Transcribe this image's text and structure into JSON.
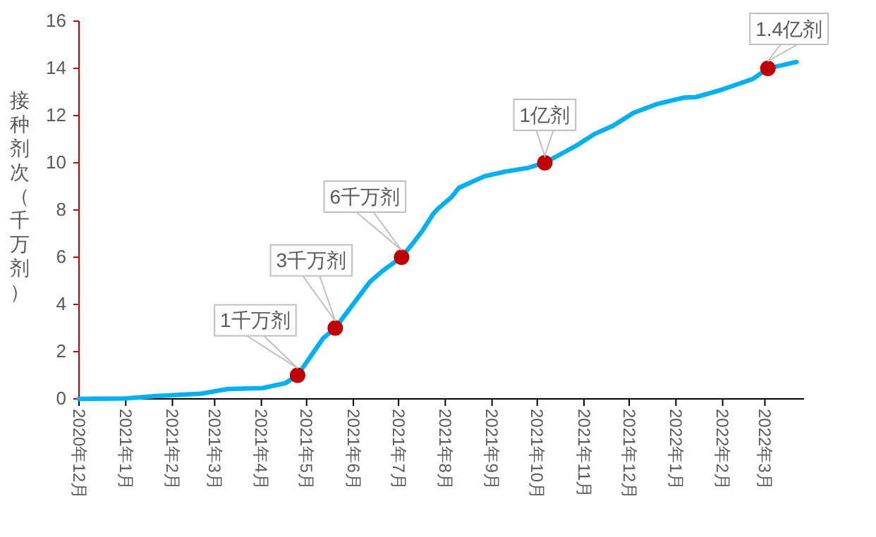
{
  "chart_data": {
    "type": "line",
    "ylabel": "接种剂次（千万剂）",
    "xlim": [
      "2020-12-01",
      "2022-03-27"
    ],
    "xticks": [
      {
        "value": "2020-12",
        "label": "2020年12月"
      },
      {
        "value": "2021-01",
        "label": "2021年1月"
      },
      {
        "value": "2021-02",
        "label": "2021年2月"
      },
      {
        "value": "2021-03",
        "label": "2021年3月"
      },
      {
        "value": "2021-04",
        "label": "2021年4月"
      },
      {
        "value": "2021-05",
        "label": "2021年5月"
      },
      {
        "value": "2021-06",
        "label": "2021年6月"
      },
      {
        "value": "2021-07",
        "label": "2021年7月"
      },
      {
        "value": "2021-08",
        "label": "2021年8月"
      },
      {
        "value": "2021-09",
        "label": "2021年9月"
      },
      {
        "value": "2021-10",
        "label": "2021年10月"
      },
      {
        "value": "2021-11",
        "label": "2021年11月"
      },
      {
        "value": "2021-12",
        "label": "2021年12月"
      },
      {
        "value": "2022-01",
        "label": "2022年1月"
      },
      {
        "value": "2022-02",
        "label": "2022年2月"
      },
      {
        "value": "2022-03",
        "label": "2022年3月"
      }
    ],
    "ylim": [
      0,
      16
    ],
    "yticks": [
      0,
      2,
      4,
      6,
      8,
      10,
      12,
      14,
      16
    ],
    "grid": false,
    "line_style": "solid",
    "marker": "none",
    "series": [
      {
        "color": "#00b0f0",
        "x": [
          "2020-12-01",
          "2021-01-01",
          "2021-01-21",
          "2021-02-20",
          "2021-03-10",
          "2021-04-02",
          "2021-04-17",
          "2021-04-25",
          "2021-05-12",
          "2021-05-20",
          "2021-06-12",
          "2021-06-21",
          "2021-07-03",
          "2021-07-10",
          "2021-07-17",
          "2021-07-24",
          "2021-07-27",
          "2021-08-05",
          "2021-08-10",
          "2021-08-27",
          "2021-09-10",
          "2021-09-24",
          "2021-10-06",
          "2021-10-27",
          "2021-11-08",
          "2021-11-20",
          "2021-12-04",
          "2021-12-19",
          "2022-01-06",
          "2022-01-14",
          "2022-01-30",
          "2022-02-21",
          "2022-03-03",
          "2022-03-22"
        ],
        "values": [
          0,
          0.02,
          0.12,
          0.22,
          0.42,
          0.46,
          0.67,
          1,
          2.57,
          3,
          4.96,
          5.45,
          6,
          6.55,
          7.14,
          7.84,
          8.05,
          8.54,
          8.94,
          9.43,
          9.63,
          9.77,
          10,
          10.73,
          11.22,
          11.56,
          12.12,
          12.48,
          12.76,
          12.78,
          13.07,
          13.55,
          14,
          14.27
        ]
      },
      {
        "type": "scatter",
        "color": "#c00000",
        "marker": "circle",
        "x": [
          "2021-04-25",
          "2021-05-20",
          "2021-07-03",
          "2021-10-06",
          "2022-03-03"
        ],
        "values": [
          1,
          3,
          6,
          10,
          14
        ]
      }
    ],
    "annotations": [
      {
        "text": "1千万剂",
        "x": "2021-04-25",
        "y": 1
      },
      {
        "text": "3千万剂",
        "x": "2021-05-20",
        "y": 3
      },
      {
        "text": "6千万剂",
        "x": "2021-07-03",
        "y": 6
      },
      {
        "text": "1亿剂",
        "x": "2021-10-06",
        "y": 10
      },
      {
        "text": "1.4亿剂",
        "x": "2022-03-03",
        "y": 14
      }
    ]
  }
}
